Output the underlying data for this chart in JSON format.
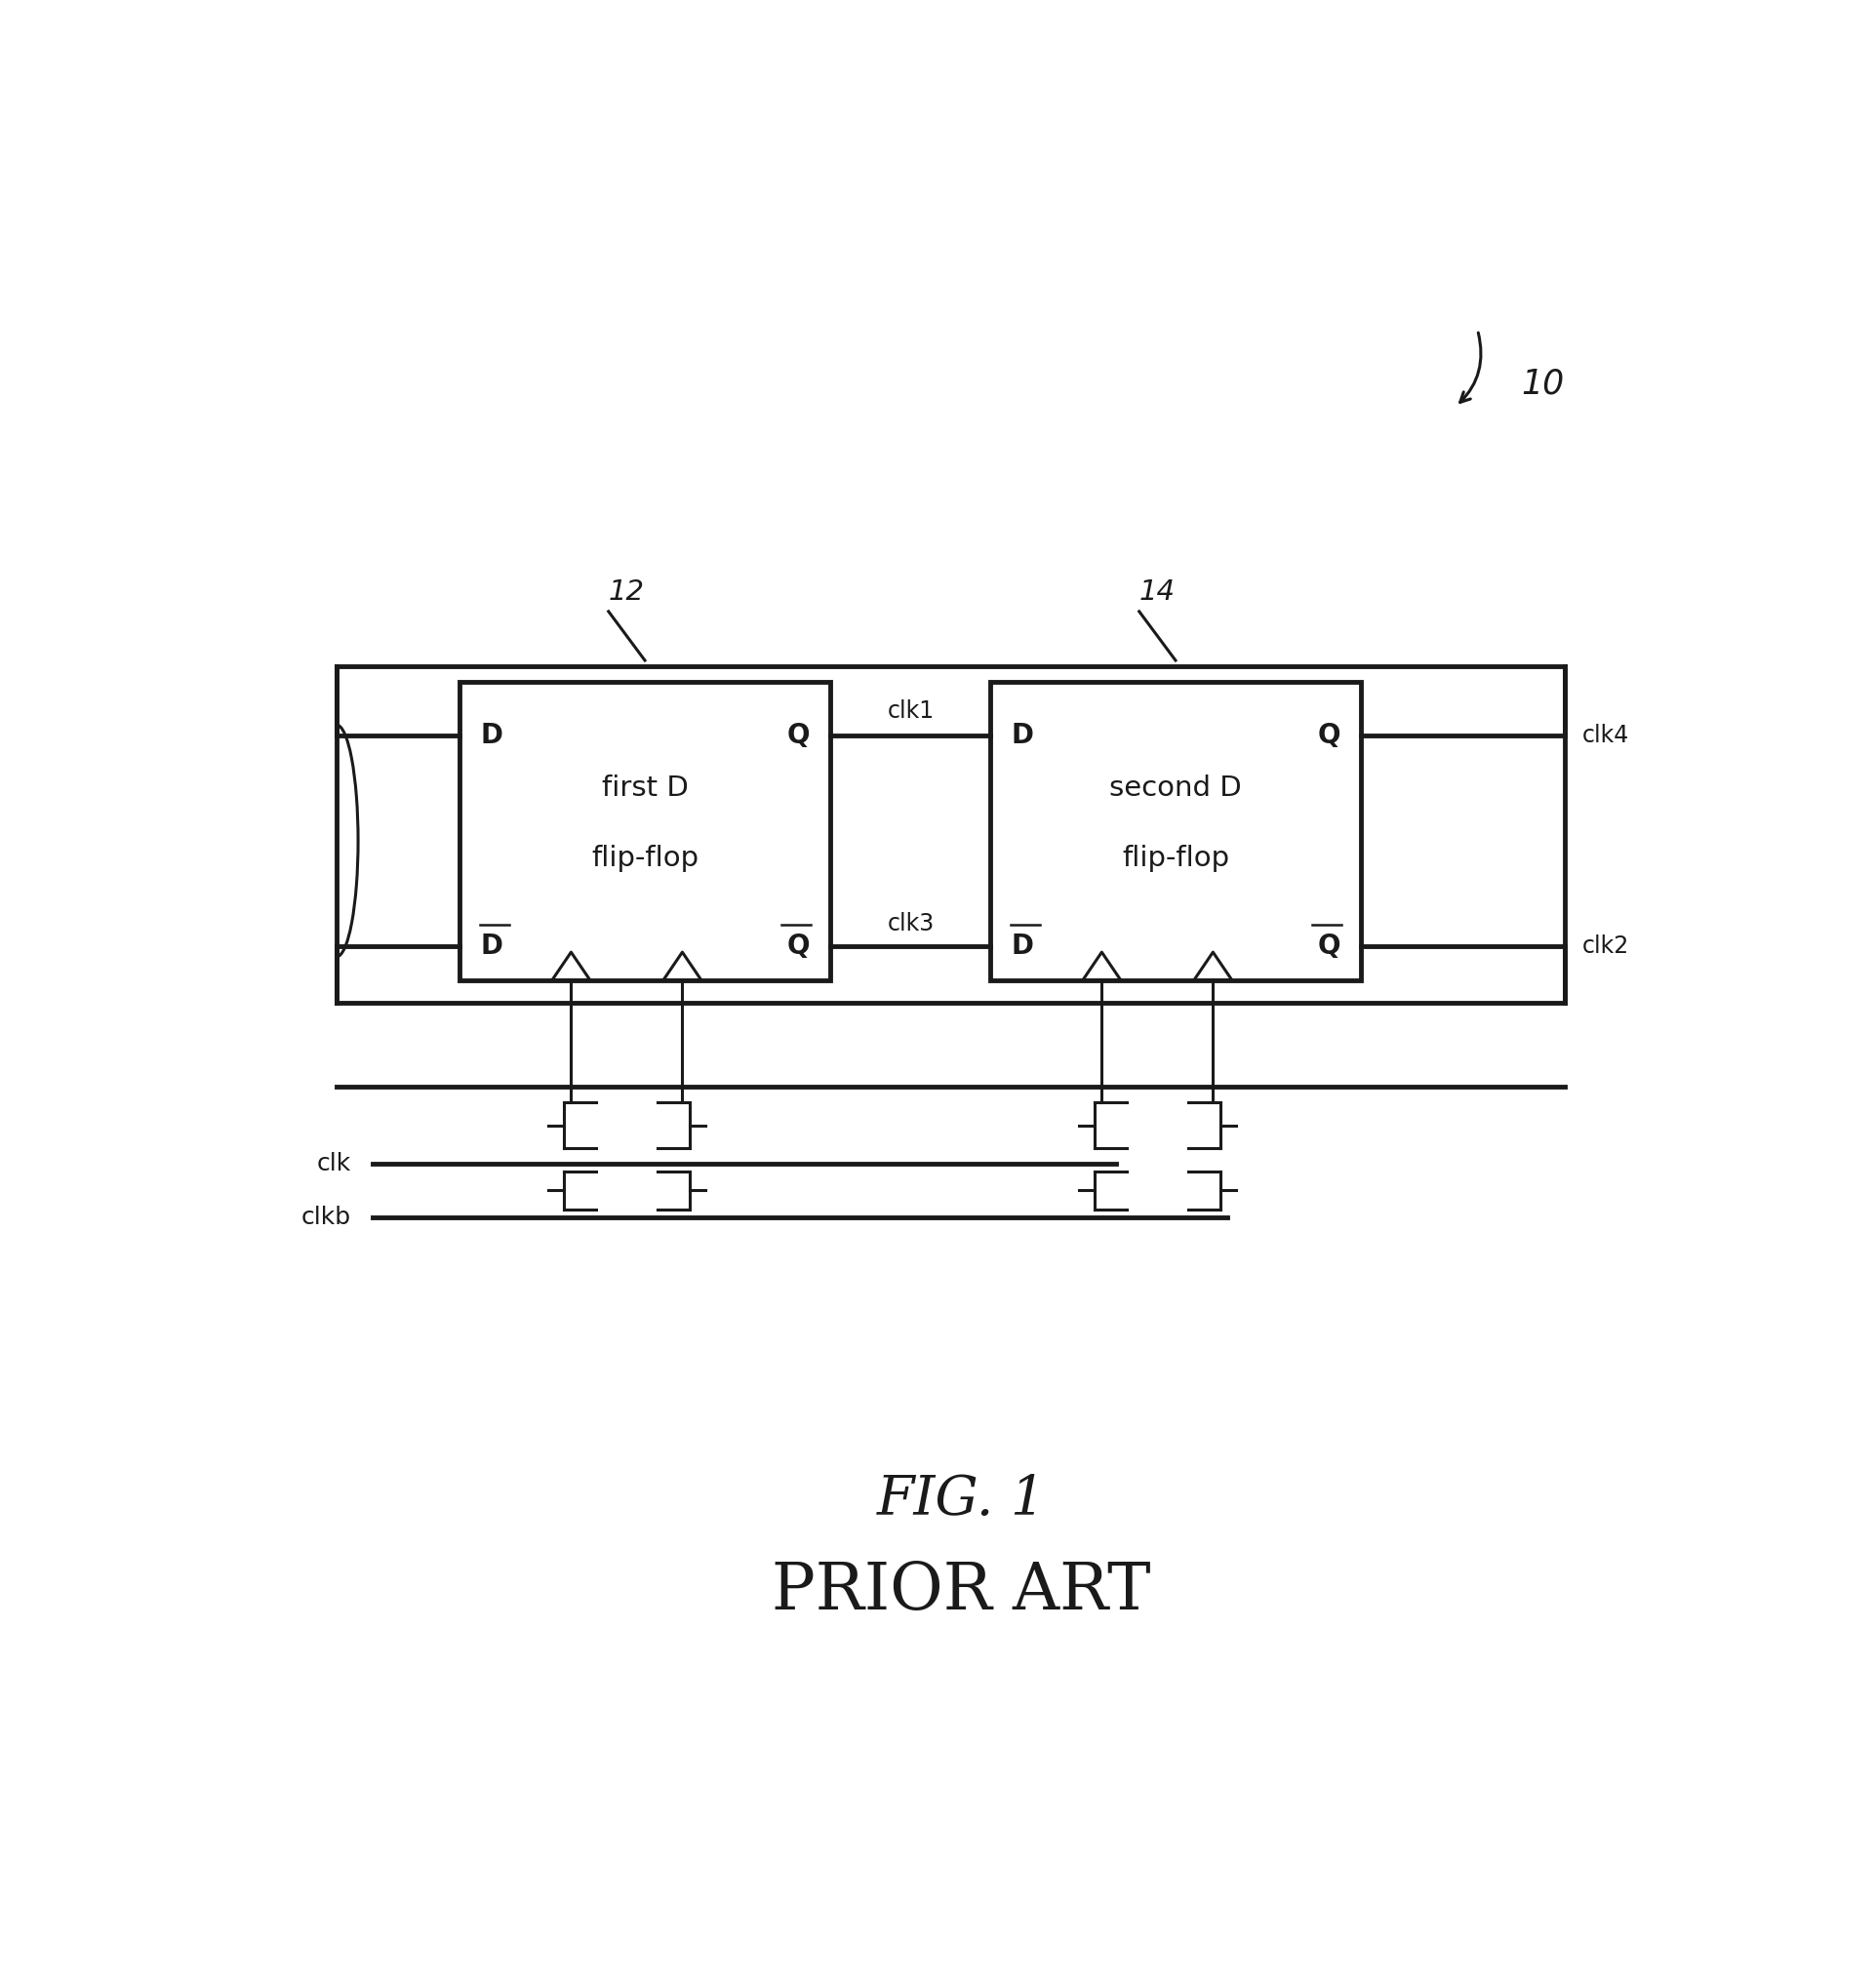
{
  "fig_width": 19.23,
  "fig_height": 20.36,
  "bg_color": "#ffffff",
  "line_color": "#1a1a1a",
  "text_color": "#1a1a1a",
  "lw": 2.2,
  "lw_thick": 3.5,
  "title": "FIG. 1",
  "subtitle": "PRIOR ART",
  "label_10": "10",
  "label_12": "12",
  "label_14": "14"
}
